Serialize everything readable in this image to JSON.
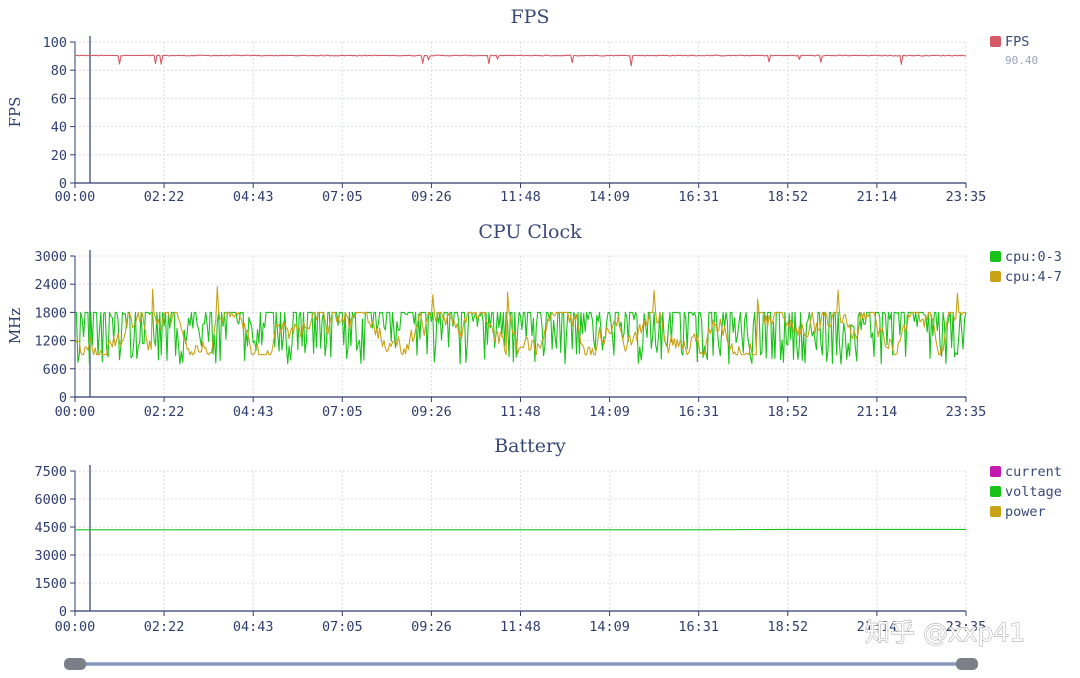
{
  "colors": {
    "fps": "#d65a66",
    "cpu03": "#19c219",
    "cpu47": "#c9a218",
    "current": "#c51ab0",
    "voltage": "#19c219",
    "power": "#c9a218",
    "axis": "#2f3e6e",
    "grid": "#d9dde6",
    "slider": "#8a96bd"
  },
  "watermark": "知乎 @xxp41",
  "chart_data": [
    {
      "type": "line",
      "title": "FPS",
      "ylabel": "FPS",
      "xlabel": "",
      "ylim": [
        0,
        100
      ],
      "yticks": [
        "0",
        "20",
        "40",
        "60",
        "80",
        "100"
      ],
      "xticks": [
        "00:00",
        "02:22",
        "04:43",
        "07:05",
        "09:26",
        "11:48",
        "14:09",
        "16:31",
        "18:52",
        "21:14",
        "23:35"
      ],
      "grid": true,
      "legend_position": "right",
      "series": [
        {
          "name": "FPS",
          "color_key": "fps",
          "value_label": "90.40",
          "base": 90.4,
          "min": 83,
          "max": 92
        }
      ]
    },
    {
      "type": "line",
      "title": "CPU Clock",
      "ylabel": "MHz",
      "xlabel": "",
      "ylim": [
        0,
        3000
      ],
      "yticks": [
        "0",
        "600",
        "1200",
        "1800",
        "2400",
        "3000"
      ],
      "xticks": [
        "00:00",
        "02:22",
        "04:43",
        "07:05",
        "09:26",
        "11:48",
        "14:09",
        "16:31",
        "18:52",
        "21:14",
        "23:35"
      ],
      "grid": true,
      "legend_position": "right",
      "series": [
        {
          "name": "cpu:0-3",
          "color_key": "cpu03",
          "min": 700,
          "max": 1800
        },
        {
          "name": "cpu:4-7",
          "color_key": "cpu47",
          "min": 900,
          "max": 2400
        }
      ]
    },
    {
      "type": "line",
      "title": "Battery",
      "ylabel": "",
      "xlabel": "",
      "ylim": [
        0,
        7500
      ],
      "yticks": [
        "0",
        "1500",
        "3000",
        "4500",
        "6000",
        "7500"
      ],
      "xticks": [
        "00:00",
        "02:22",
        "04:43",
        "07:05",
        "09:26",
        "11:48",
        "14:09",
        "16:31",
        "18:52",
        "21:14",
        "23:35"
      ],
      "grid": true,
      "legend_position": "right",
      "series": [
        {
          "name": "current",
          "color_key": "current"
        },
        {
          "name": "voltage",
          "color_key": "voltage",
          "values": [
            4350,
            4350,
            4350,
            4350,
            4350,
            4350,
            4350,
            4350,
            4370,
            4370,
            4370
          ]
        },
        {
          "name": "power",
          "color_key": "power"
        }
      ]
    }
  ]
}
